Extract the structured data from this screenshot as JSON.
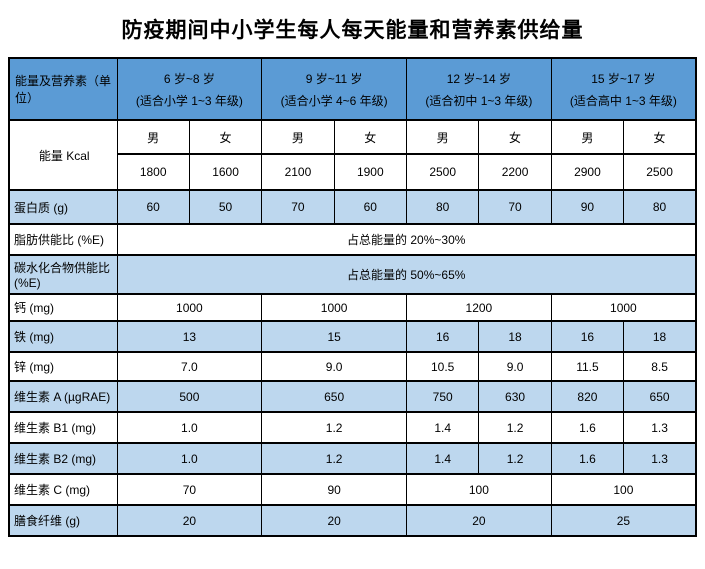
{
  "title": "防疫期间中小学生每人每天能量和营养素供给量",
  "table": {
    "corner_label": "能量及营养素（单位）",
    "age_groups": [
      {
        "line1": "6 岁~8 岁",
        "line2": "(适合小学 1~3 年级)"
      },
      {
        "line1": "9 岁~11 岁",
        "line2": "(适合小学 4~6 年级)"
      },
      {
        "line1": "12 岁~14 岁",
        "line2": "(适合初中 1~3 年级)"
      },
      {
        "line1": "15 岁~17 岁",
        "line2": "(适合高中 1~3 年级)"
      }
    ],
    "genders": {
      "m": "男",
      "f": "女"
    },
    "energy": {
      "label": "能量 Kcal",
      "values": [
        "1800",
        "1600",
        "2100",
        "1900",
        "2500",
        "2200",
        "2900",
        "2500"
      ]
    },
    "protein": {
      "label": "蛋白质 (g)",
      "values": [
        "60",
        "50",
        "70",
        "60",
        "80",
        "70",
        "90",
        "80"
      ]
    },
    "fat": {
      "label": "脂肪供能比 (%E)",
      "value": "占总能量的 20%~30%"
    },
    "carb": {
      "label": "碳水化合物供能比 (%E)",
      "value": "占总能量的 50%~65%"
    },
    "calcium": {
      "label": "钙 (mg)",
      "values": [
        "1000",
        "1000",
        "1200",
        "1000"
      ]
    },
    "iron": {
      "label": "铁 (mg)",
      "values": [
        "13",
        "15",
        "16",
        "18",
        "16",
        "18"
      ]
    },
    "zinc": {
      "label": "锌 (mg)",
      "values": [
        "7.0",
        "9.0",
        "10.5",
        "9.0",
        "11.5",
        "8.5"
      ]
    },
    "vit_a": {
      "label": "维生素 A (µgRAE)",
      "values": [
        "500",
        "650",
        "750",
        "630",
        "820",
        "650"
      ]
    },
    "vit_b1": {
      "label": "维生素 B1 (mg)",
      "values": [
        "1.0",
        "1.2",
        "1.4",
        "1.2",
        "1.6",
        "1.3"
      ]
    },
    "vit_b2": {
      "label": "维生素 B2 (mg)",
      "values": [
        "1.0",
        "1.2",
        "1.4",
        "1.2",
        "1.6",
        "1.3"
      ]
    },
    "vit_c": {
      "label": "维生素 C (mg)",
      "values": [
        "70",
        "90",
        "100",
        "100"
      ]
    },
    "fiber": {
      "label": "膳食纤维 (g)",
      "values": [
        "20",
        "20",
        "20",
        "25"
      ]
    }
  },
  "colors": {
    "header_blue": "#5B9BD5",
    "row_light_blue": "#BDD7EE",
    "row_white": "#FFFFFF",
    "border": "#000000"
  }
}
